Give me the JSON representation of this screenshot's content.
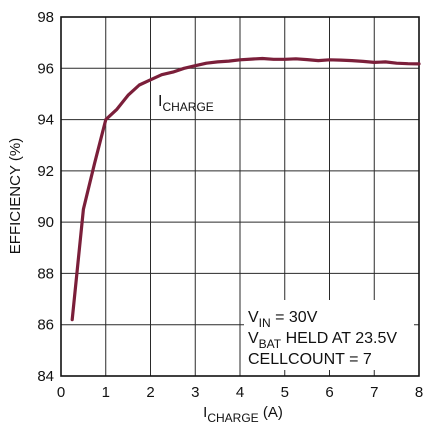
{
  "chart_data": {
    "type": "line",
    "xlabel": {
      "main": "I",
      "sub": "CHARGE",
      "unit": " (A)"
    },
    "ylabel": "EFFICIENCY (%)",
    "xlim": [
      0,
      8
    ],
    "ylim": [
      84,
      98
    ],
    "x_ticks": [
      0,
      1,
      2,
      3,
      4,
      5,
      6,
      7,
      8
    ],
    "y_ticks": [
      84,
      86,
      88,
      90,
      92,
      94,
      96,
      98
    ],
    "grid": true,
    "line_color": "#7b1f3a",
    "series": [
      {
        "label": {
          "main": "I",
          "sub": "CHARGE"
        },
        "x": [
          0.25,
          0.5,
          0.75,
          1.0,
          1.25,
          1.5,
          1.75,
          2.0,
          2.25,
          2.5,
          2.75,
          3.0,
          3.25,
          3.5,
          3.75,
          4.0,
          4.25,
          4.5,
          4.75,
          5.0,
          5.25,
          5.5,
          5.75,
          6.0,
          6.25,
          6.5,
          6.75,
          7.0,
          7.25,
          7.5,
          7.75,
          8.0
        ],
        "y": [
          86.2,
          90.5,
          92.3,
          94.0,
          94.4,
          94.95,
          95.35,
          95.55,
          95.75,
          95.85,
          96.0,
          96.1,
          96.2,
          96.25,
          96.28,
          96.33,
          96.36,
          96.38,
          96.35,
          96.35,
          96.37,
          96.34,
          96.3,
          96.33,
          96.32,
          96.3,
          96.27,
          96.23,
          96.25,
          96.2,
          96.18,
          96.17
        ]
      }
    ],
    "annotations": [
      {
        "parts": [
          {
            "text": "V"
          },
          {
            "text": "IN",
            "sub": true
          },
          {
            "text": " = 30V"
          }
        ]
      },
      {
        "parts": [
          {
            "text": "V"
          },
          {
            "text": "BAT",
            "sub": true
          },
          {
            "text": " HELD AT 23.5V"
          }
        ]
      },
      {
        "parts": [
          {
            "text": "CELLCOUNT = 7"
          }
        ]
      }
    ]
  }
}
